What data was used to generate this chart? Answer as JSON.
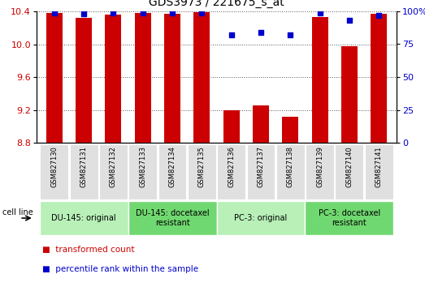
{
  "title": "GDS3973 / 221675_s_at",
  "samples": [
    "GSM827130",
    "GSM827131",
    "GSM827132",
    "GSM827133",
    "GSM827134",
    "GSM827135",
    "GSM827136",
    "GSM827137",
    "GSM827138",
    "GSM827139",
    "GSM827140",
    "GSM827141"
  ],
  "bar_values": [
    10.38,
    10.32,
    10.36,
    10.38,
    10.37,
    10.39,
    9.2,
    9.25,
    9.12,
    10.33,
    9.98,
    10.37
  ],
  "dot_values": [
    99,
    98,
    99,
    99,
    99,
    99,
    82,
    84,
    82,
    99,
    93,
    97
  ],
  "bar_bottom": 8.8,
  "ylim_left": [
    8.8,
    10.4
  ],
  "ylim_right": [
    0,
    100
  ],
  "yticks_left": [
    8.8,
    9.2,
    9.6,
    10.0,
    10.4
  ],
  "yticks_right": [
    0,
    25,
    50,
    75,
    100
  ],
  "bar_color": "#cc0000",
  "dot_color": "#0000cc",
  "bg_color": "#ffffff",
  "grid_color": "#555555",
  "group_defs": [
    {
      "label": "DU-145: original",
      "start": 0,
      "end": 3,
      "color": "#b8f0b8"
    },
    {
      "label": "DU-145: docetaxel\nresistant",
      "start": 3,
      "end": 6,
      "color": "#70d870"
    },
    {
      "label": "PC-3: original",
      "start": 6,
      "end": 9,
      "color": "#b8f0b8"
    },
    {
      "label": "PC-3: docetaxel\nresistant",
      "start": 9,
      "end": 12,
      "color": "#70d870"
    }
  ],
  "fig_width": 5.23,
  "fig_height": 3.54,
  "dpi": 100
}
